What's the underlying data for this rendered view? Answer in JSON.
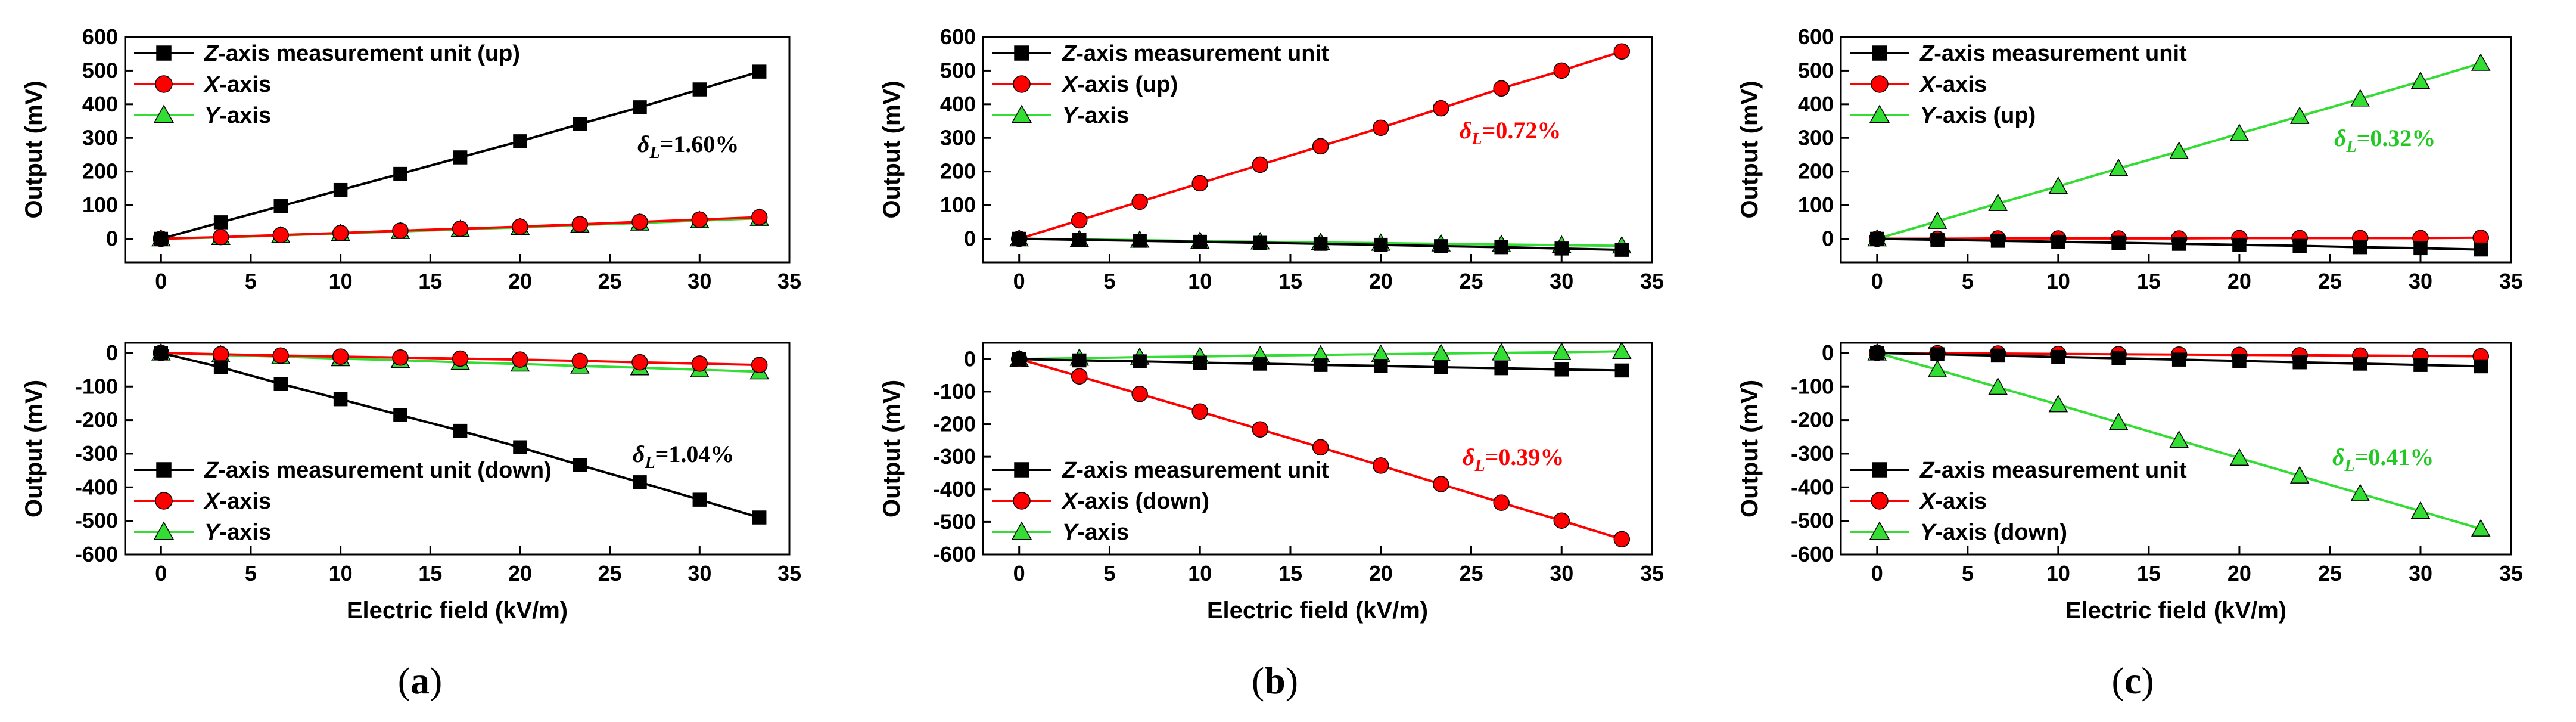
{
  "colors": {
    "black": "#000000",
    "red": "#ff0000",
    "green": "#33dd33",
    "green_text": "#22c922"
  },
  "markers": {
    "black": "square",
    "red": "circle",
    "green": "triangle"
  },
  "panel_labels": [
    "(a)",
    "(b)",
    "(c)"
  ],
  "chart_data": [
    {
      "id": "a-top",
      "type": "line",
      "panel": "a",
      "row": "top",
      "xlabel": "",
      "ylabel": "Output (mV)",
      "xlim": [
        -2,
        35
      ],
      "ylim": [
        -70,
        600
      ],
      "xticks": [
        0,
        5,
        10,
        15,
        20,
        25,
        30,
        35
      ],
      "yticks": [
        0,
        100,
        200,
        300,
        400,
        500,
        600
      ],
      "x": [
        0,
        3.33,
        6.67,
        10,
        13.33,
        16.67,
        20,
        23.33,
        26.67,
        30,
        33.33
      ],
      "series": [
        {
          "key": "black",
          "name_italic": "Z",
          "name_rest": "-axis measurement unit (up)",
          "values": [
            0,
            49,
            97,
            145,
            193,
            242,
            290,
            341,
            391,
            444,
            497
          ]
        },
        {
          "key": "red",
          "name_italic": "X",
          "name_rest": "-axis",
          "values": [
            0,
            5,
            11,
            17,
            24,
            30,
            36,
            43,
            50,
            57,
            64
          ]
        },
        {
          "key": "green",
          "name_italic": "Y",
          "name_rest": "-axis",
          "values": [
            0,
            4,
            10,
            16,
            22,
            28,
            34,
            41,
            47,
            54,
            61
          ]
        }
      ],
      "annotation": {
        "prefix": "δ",
        "sub": "L",
        "value": "=1.60%",
        "color_key": "black"
      }
    },
    {
      "id": "a-bottom",
      "type": "line",
      "panel": "a",
      "row": "bottom",
      "xlabel": "Electric field (kV/m)",
      "ylabel": "Output (mV)",
      "xlim": [
        -2,
        35
      ],
      "ylim": [
        -600,
        30
      ],
      "xticks": [
        0,
        5,
        10,
        15,
        20,
        25,
        30,
        35
      ],
      "yticks": [
        0,
        -100,
        -200,
        -300,
        -400,
        -500,
        -600
      ],
      "x": [
        0,
        3.33,
        6.67,
        10,
        13.33,
        16.67,
        20,
        23.33,
        26.67,
        30,
        33.33
      ],
      "series": [
        {
          "key": "black",
          "name_italic": "Z",
          "name_rest": "-axis measurement unit (down)",
          "values": [
            0,
            -43,
            -92,
            -138,
            -185,
            -232,
            -281,
            -334,
            -385,
            -437,
            -490
          ]
        },
        {
          "key": "red",
          "name_italic": "X",
          "name_rest": "-axis",
          "values": [
            0,
            -4,
            -8,
            -11,
            -14,
            -17,
            -20,
            -24,
            -28,
            -32,
            -36
          ]
        },
        {
          "key": "green",
          "name_italic": "Y",
          "name_rest": "-axis",
          "values": [
            0,
            -6,
            -11,
            -17,
            -22,
            -28,
            -33,
            -39,
            -44,
            -50,
            -56
          ]
        }
      ],
      "annotation": {
        "prefix": "δ",
        "sub": "L",
        "value": "=1.04%",
        "color_key": "black"
      }
    },
    {
      "id": "b-top",
      "type": "line",
      "panel": "b",
      "row": "top",
      "xlabel": "",
      "ylabel": "Output (mV)",
      "xlim": [
        -2,
        35
      ],
      "ylim": [
        -70,
        600
      ],
      "xticks": [
        0,
        5,
        10,
        15,
        20,
        25,
        30,
        35
      ],
      "yticks": [
        0,
        100,
        200,
        300,
        400,
        500,
        600
      ],
      "x": [
        0,
        3.33,
        6.67,
        10,
        13.33,
        16.67,
        20,
        23.33,
        26.67,
        30,
        33.33
      ],
      "series": [
        {
          "key": "black",
          "name_italic": "Z",
          "name_rest": "-axis measurement unit",
          "values": [
            0,
            -3,
            -6,
            -9,
            -12,
            -15,
            -18,
            -22,
            -25,
            -29,
            -33
          ]
        },
        {
          "key": "red",
          "name_italic": "X",
          "name_rest": "-axis (up)",
          "values": [
            0,
            55,
            110,
            165,
            220,
            275,
            330,
            388,
            447,
            500,
            557
          ]
        },
        {
          "key": "green",
          "name_italic": "Y",
          "name_rest": "-axis",
          "values": [
            0,
            -2,
            -4,
            -7,
            -9,
            -11,
            -13,
            -15,
            -17,
            -19,
            -21
          ]
        }
      ],
      "annotation": {
        "prefix": "δ",
        "sub": "L",
        "value": "=0.72%",
        "color_key": "red"
      }
    },
    {
      "id": "b-bottom",
      "type": "line",
      "panel": "b",
      "row": "bottom",
      "xlabel": "Electric field (kV/m)",
      "ylabel": "Output (mV)",
      "xlim": [
        -2,
        35
      ],
      "ylim": [
        -600,
        50
      ],
      "xticks": [
        0,
        5,
        10,
        15,
        20,
        25,
        30,
        35
      ],
      "yticks": [
        0,
        -100,
        -200,
        -300,
        -400,
        -500,
        -600
      ],
      "x": [
        0,
        3.33,
        6.67,
        10,
        13.33,
        16.67,
        20,
        23.33,
        26.67,
        30,
        33.33
      ],
      "series": [
        {
          "key": "black",
          "name_italic": "Z",
          "name_rest": "-axis measurement unit",
          "values": [
            0,
            -4,
            -7,
            -11,
            -14,
            -18,
            -21,
            -25,
            -28,
            -32,
            -35
          ]
        },
        {
          "key": "red",
          "name_italic": "X",
          "name_rest": "-axis (down)",
          "values": [
            0,
            -53,
            -107,
            -161,
            -216,
            -271,
            -327,
            -384,
            -441,
            -496,
            -553
          ]
        },
        {
          "key": "green",
          "name_italic": "Y",
          "name_rest": "-axis",
          "values": [
            0,
            3,
            6,
            8,
            11,
            13,
            15,
            17,
            19,
            21,
            24
          ]
        }
      ],
      "annotation": {
        "prefix": "δ",
        "sub": "L",
        "value": "=0.39%",
        "color_key": "red"
      }
    },
    {
      "id": "c-top",
      "type": "line",
      "panel": "c",
      "row": "top",
      "xlabel": "",
      "ylabel": "Output (mV)",
      "xlim": [
        -2,
        35
      ],
      "ylim": [
        -70,
        600
      ],
      "xticks": [
        0,
        5,
        10,
        15,
        20,
        25,
        30,
        35
      ],
      "yticks": [
        0,
        100,
        200,
        300,
        400,
        500,
        600
      ],
      "x": [
        0,
        3.33,
        6.67,
        10,
        13.33,
        16.67,
        20,
        23.33,
        26.67,
        30,
        33.33
      ],
      "series": [
        {
          "key": "black",
          "name_italic": "Z",
          "name_rest": "-axis measurement unit",
          "values": [
            0,
            -3,
            -6,
            -9,
            -12,
            -15,
            -18,
            -21,
            -25,
            -28,
            -32
          ]
        },
        {
          "key": "red",
          "name_italic": "X",
          "name_rest": "-axis",
          "values": [
            0,
            0,
            1,
            1,
            1,
            1,
            2,
            2,
            2,
            2,
            3
          ]
        },
        {
          "key": "green",
          "name_italic": "Y",
          "name_rest": "-axis (up)",
          "values": [
            0,
            52,
            105,
            156,
            209,
            260,
            313,
            364,
            416,
            468,
            522
          ]
        }
      ],
      "annotation": {
        "prefix": "δ",
        "sub": "L",
        "value": "=0.32%",
        "color_key": "green_text"
      }
    },
    {
      "id": "c-bottom",
      "type": "line",
      "panel": "c",
      "row": "bottom",
      "xlabel": "Electric field (kV/m)",
      "ylabel": "Output (mV)",
      "xlim": [
        -2,
        35
      ],
      "ylim": [
        -600,
        30
      ],
      "xticks": [
        0,
        5,
        10,
        15,
        20,
        25,
        30,
        35
      ],
      "yticks": [
        0,
        -100,
        -200,
        -300,
        -400,
        -500,
        -600
      ],
      "x": [
        0,
        3.33,
        6.67,
        10,
        13.33,
        16.67,
        20,
        23.33,
        26.67,
        30,
        33.33
      ],
      "series": [
        {
          "key": "black",
          "name_italic": "Z",
          "name_rest": "-axis measurement unit",
          "values": [
            0,
            -4,
            -8,
            -12,
            -16,
            -20,
            -24,
            -28,
            -32,
            -36,
            -40
          ]
        },
        {
          "key": "red",
          "name_italic": "X",
          "name_rest": "-axis",
          "values": [
            0,
            -1,
            -2,
            -3,
            -4,
            -5,
            -6,
            -7,
            -8,
            -9,
            -10
          ]
        },
        {
          "key": "green",
          "name_italic": "Y",
          "name_rest": "-axis (down)",
          "values": [
            0,
            -50,
            -102,
            -154,
            -207,
            -260,
            -313,
            -366,
            -419,
            -471,
            -524
          ]
        }
      ],
      "annotation": {
        "prefix": "δ",
        "sub": "L",
        "value": "=0.41%",
        "color_key": "green_text"
      }
    }
  ]
}
